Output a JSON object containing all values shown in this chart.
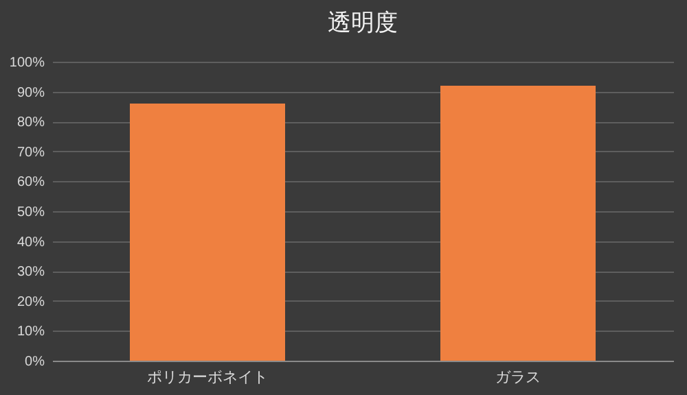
{
  "chart_data": {
    "type": "bar",
    "title": "透明度",
    "categories": [
      "ポリカーボネイト",
      "ガラス"
    ],
    "values": [
      86,
      92
    ],
    "color": "#ef8040",
    "ylim": [
      0,
      100
    ],
    "yticks": [
      {
        "value": 0,
        "label": "0%"
      },
      {
        "value": 10,
        "label": "10%"
      },
      {
        "value": 20,
        "label": "20%"
      },
      {
        "value": 30,
        "label": "30%"
      },
      {
        "value": 40,
        "label": "40%"
      },
      {
        "value": 50,
        "label": "50%"
      },
      {
        "value": 60,
        "label": "60%"
      },
      {
        "value": 70,
        "label": "70%"
      },
      {
        "value": 80,
        "label": "80%"
      },
      {
        "value": 90,
        "label": "90%"
      },
      {
        "value": 100,
        "label": "100%"
      }
    ],
    "grid": "y",
    "legend": false
  }
}
